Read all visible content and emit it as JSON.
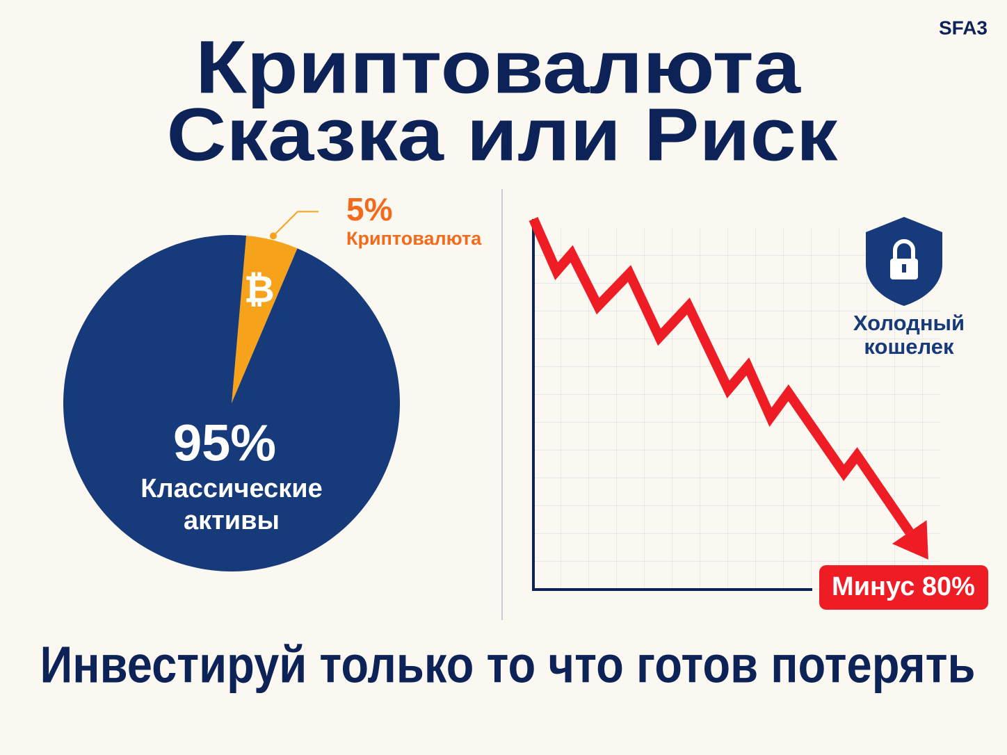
{
  "brand": "SFA3",
  "title": [
    "Криптовалюта",
    "Сказка или Риск"
  ],
  "chart_data": [
    {
      "type": "pie",
      "categories": [
        "Криптовалюта",
        "Классические активы"
      ],
      "values": [
        5,
        95
      ],
      "value_labels": [
        "5%",
        "95%"
      ],
      "colors": [
        "#f7a21b",
        "#163a7a"
      ],
      "symbol": "₿"
    },
    {
      "type": "line",
      "xlim": [
        0,
        100
      ],
      "ylim": [
        0,
        100
      ],
      "grid": true,
      "annotation": "Минус 80%",
      "side_label": "Холодный кошелек",
      "series": [
        {
          "color": "#ee1c25",
          "x": [
            0,
            5.8,
            9.6,
            16.2,
            24.1,
            31.6,
            38.9,
            48.9,
            53.8,
            59.5,
            64.0,
            77.9,
            81.2,
            99.1
          ],
          "values": [
            100,
            85.9,
            90.6,
            76.5,
            85.3,
            68.1,
            76.5,
            54.0,
            60.2,
            46.5,
            53.1,
            31.5,
            36.2,
            8.1
          ]
        }
      ]
    }
  ],
  "footer": "Инвестируй только то что готов потерять"
}
